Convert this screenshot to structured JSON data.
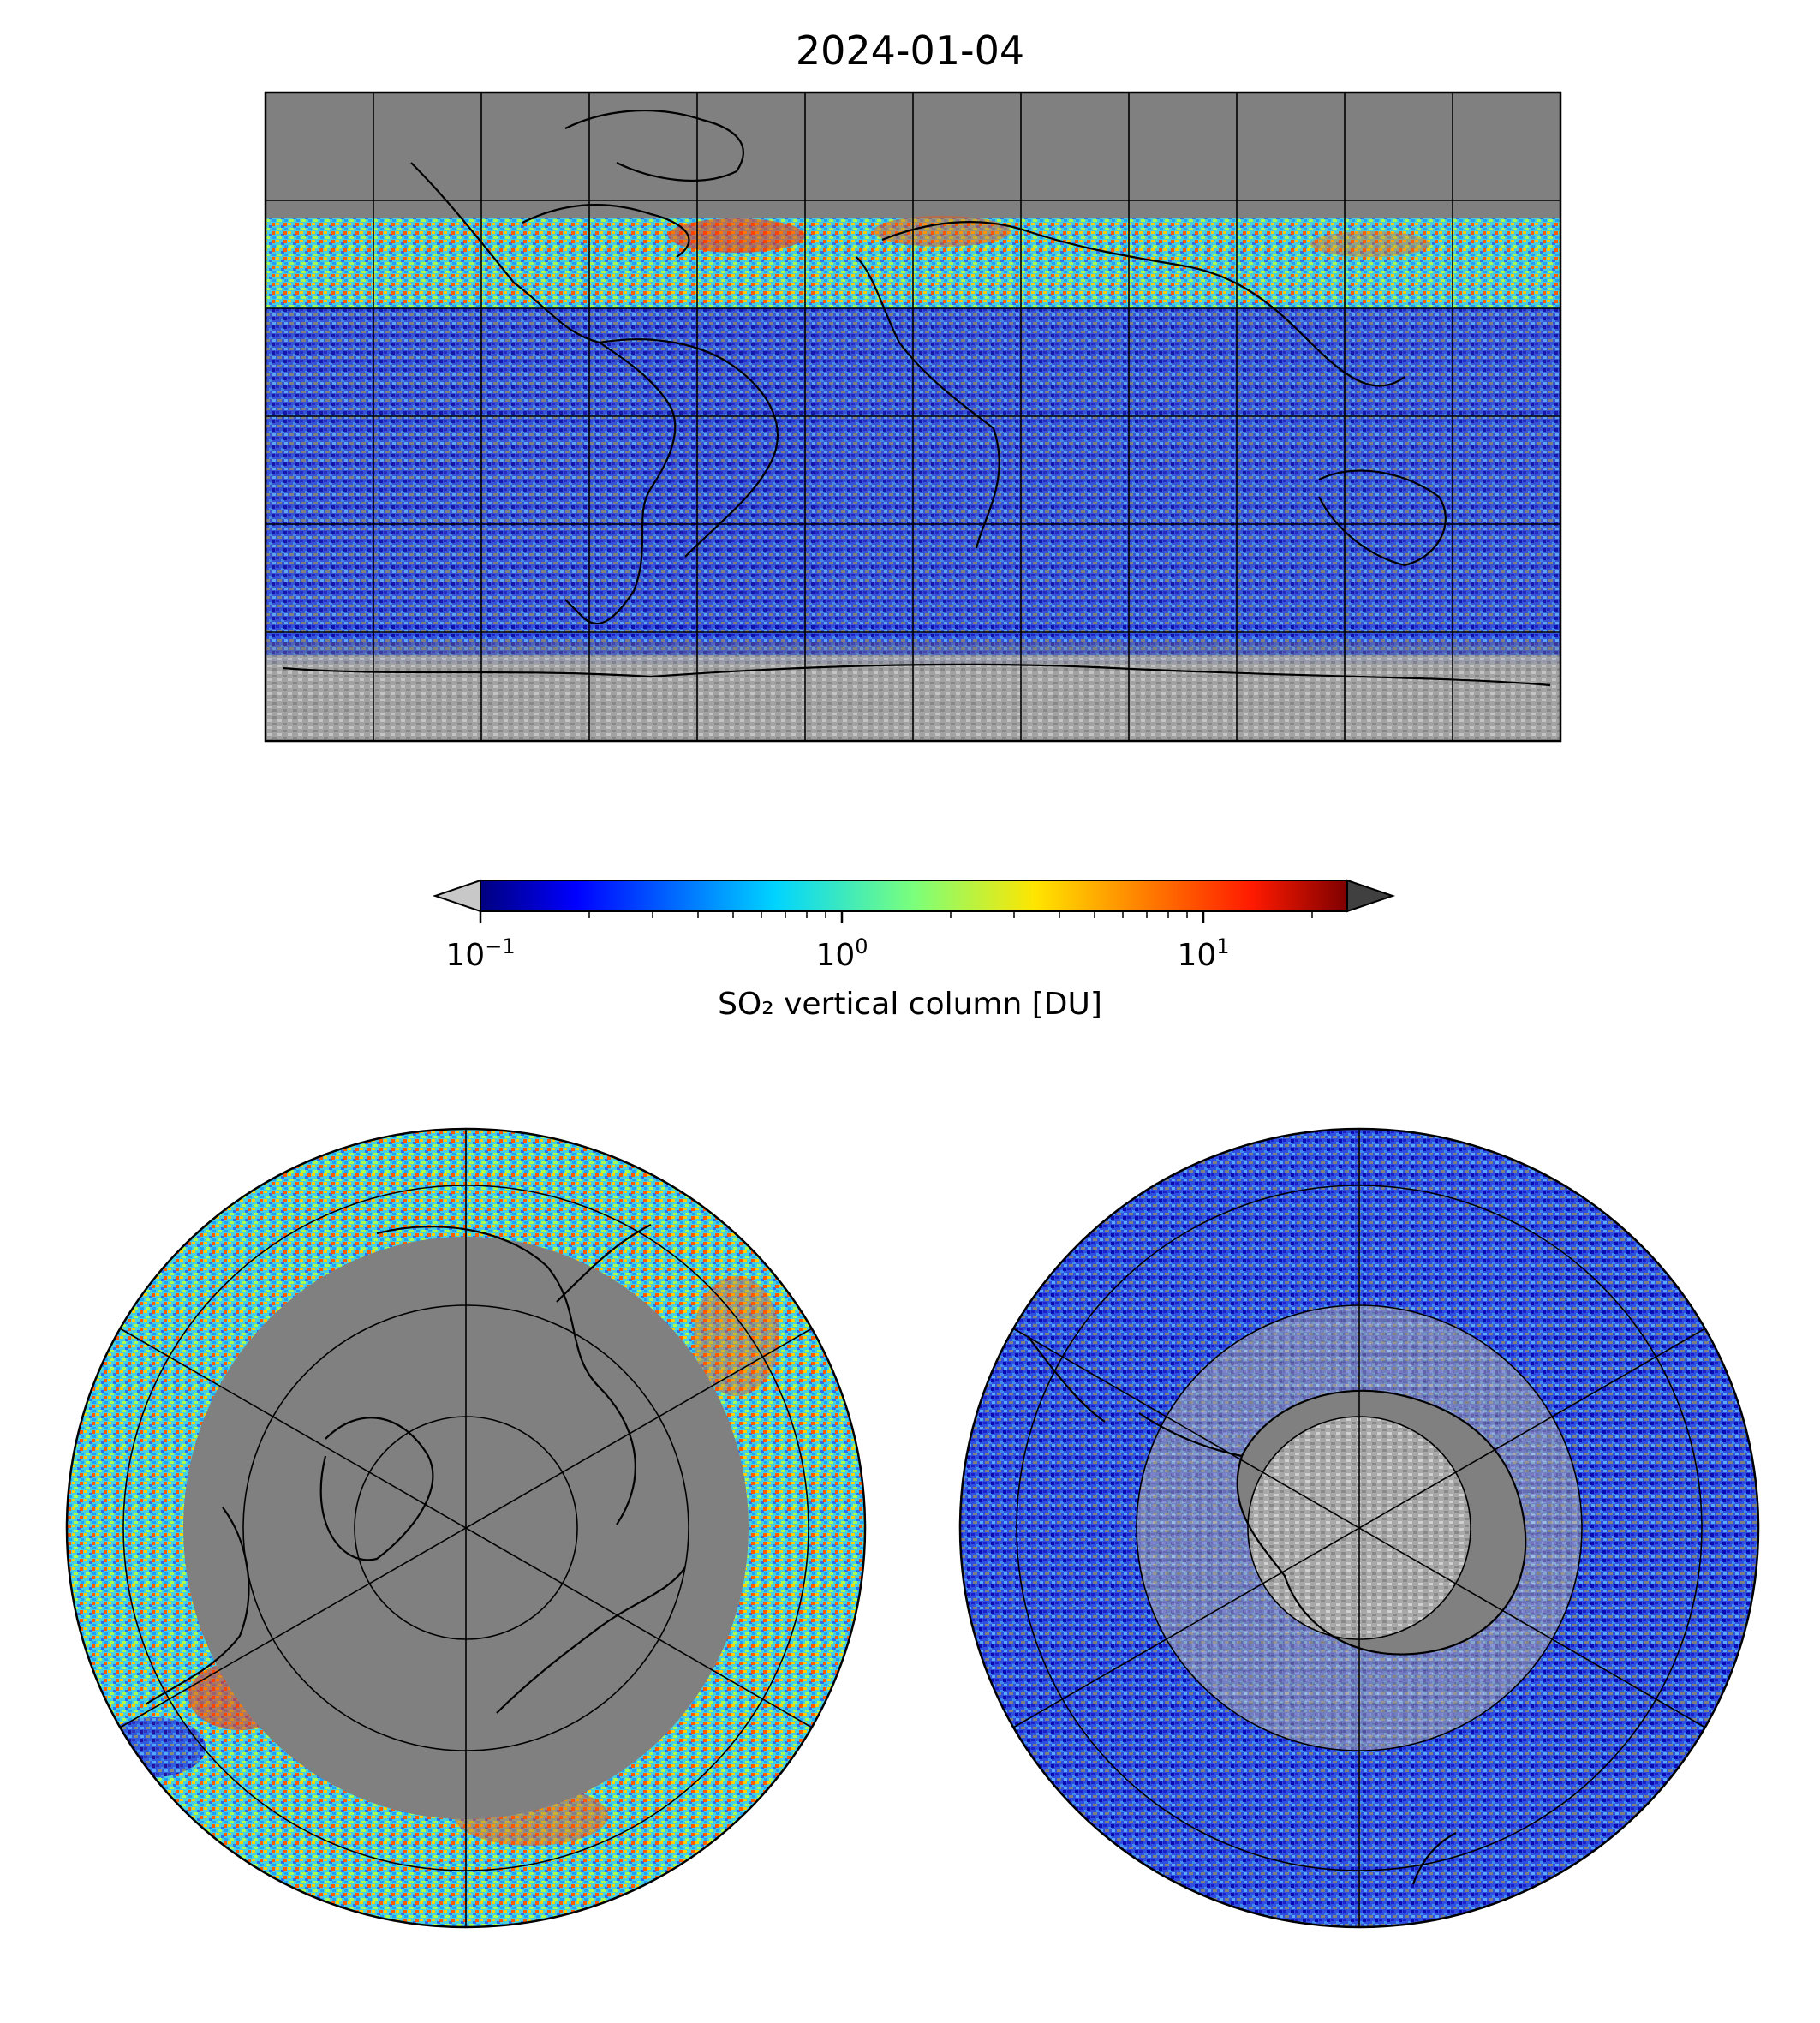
{
  "title": "2024-01-04",
  "colorbar": {
    "label": "SO₂ vertical column [DU]",
    "scale": "log",
    "range": [
      0.1,
      25
    ],
    "colormap": "jet",
    "under_color": "#c8c8c8",
    "over_color": "#404040",
    "ticks": [
      {
        "base": "10",
        "exp": "−1",
        "value": 0.1
      },
      {
        "base": "10",
        "exp": "0",
        "value": 1
      },
      {
        "base": "10",
        "exp": "1",
        "value": 10
      }
    ]
  },
  "maps": {
    "global": {
      "projection": "plate-carree",
      "graticule_deg": 30,
      "background": "#808080"
    },
    "north_polar": {
      "projection": "north-polar-stereographic",
      "background": "#808080"
    },
    "south_polar": {
      "projection": "south-polar-stereographic",
      "background": "#808080"
    }
  }
}
